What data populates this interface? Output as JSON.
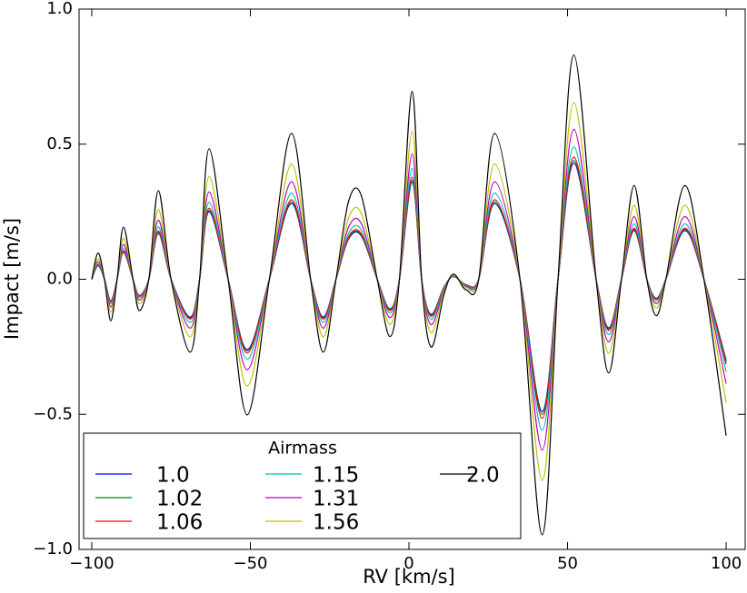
{
  "chart_data": {
    "type": "line",
    "xlabel": "RV [km/s]",
    "ylabel": "Impact [m/s]",
    "legend_title": "Airmass",
    "legend": "lower left",
    "xlim": [
      -104,
      106
    ],
    "ylim": [
      -1.0,
      1.0
    ],
    "xticks": [
      {
        "value": -100,
        "label": "−100"
      },
      {
        "value": -50,
        "label": "−50"
      },
      0,
      50,
      100
    ],
    "yticks": [
      {
        "value": -1.0,
        "label": "−1.0"
      },
      {
        "value": -0.5,
        "label": "−0.5"
      },
      {
        "value": 0.0,
        "label": "0.0"
      },
      0.5,
      {
        "value": 1.0,
        "label": "1.0"
      }
    ],
    "x": [
      -100,
      -98,
      -96,
      -94,
      -92,
      -90,
      -87,
      -85,
      -82,
      -79,
      -75,
      -69,
      -66,
      -63,
      -57,
      -51,
      -44,
      -37,
      -31,
      -27,
      -23,
      -19,
      -15,
      -10,
      -6,
      -3,
      1,
      4,
      7,
      11,
      14,
      18,
      22,
      27,
      35,
      42,
      47,
      52,
      59,
      63,
      67,
      71,
      75,
      78,
      81,
      87,
      93,
      100
    ],
    "series": [
      {
        "name": "1.0",
        "color": "#0000ff",
        "values": [
          0,
          0.05,
          0,
          -0.08,
          0,
          0.1,
          0,
          -0.06,
          0,
          0.17,
          0,
          -0.14,
          0,
          0.25,
          0,
          -0.26,
          0,
          0.28,
          0,
          -0.14,
          0,
          0.15,
          0.16,
          0,
          -0.11,
          0,
          0.36,
          0,
          -0.13,
          -0.03,
          0.01,
          -0.02,
          0,
          0.28,
          0,
          -0.49,
          0,
          0.43,
          0,
          -0.18,
          0,
          0.18,
          0,
          -0.07,
          0,
          0.18,
          0,
          -0.3
        ]
      },
      {
        "name": "1.02",
        "color": "#008000",
        "values": [
          0,
          0.051,
          0,
          -0.082,
          0,
          0.102,
          0,
          -0.061,
          0,
          0.173,
          0,
          -0.143,
          0,
          0.255,
          0,
          -0.265,
          0,
          0.286,
          0,
          -0.143,
          0,
          0.153,
          0.163,
          0,
          -0.112,
          0,
          0.367,
          0,
          -0.133,
          -0.031,
          0.01,
          -0.02,
          0,
          0.286,
          0,
          -0.5,
          0,
          0.439,
          0,
          -0.184,
          0,
          0.184,
          0,
          -0.071,
          0,
          0.184,
          0,
          -0.306
        ]
      },
      {
        "name": "1.06",
        "color": "#ff0000",
        "values": [
          0,
          0.053,
          0,
          -0.084,
          0,
          0.105,
          0,
          -0.063,
          0,
          0.179,
          0,
          -0.147,
          0,
          0.263,
          0,
          -0.273,
          0,
          0.294,
          0,
          -0.147,
          0,
          0.158,
          0.168,
          0,
          -0.116,
          0,
          0.378,
          0,
          -0.137,
          -0.032,
          0.011,
          -0.021,
          0,
          0.294,
          0,
          -0.515,
          0,
          0.452,
          0,
          -0.189,
          0,
          0.189,
          0,
          -0.074,
          0,
          0.189,
          0,
          -0.315
        ]
      },
      {
        "name": "1.15",
        "color": "#00bfbf",
        "values": [
          0,
          0.057,
          0,
          -0.091,
          0,
          0.114,
          0,
          -0.068,
          0,
          0.194,
          0,
          -0.16,
          0,
          0.285,
          0,
          -0.296,
          0,
          0.319,
          0,
          -0.16,
          0,
          0.171,
          0.182,
          0,
          -0.125,
          0,
          0.41,
          0,
          -0.148,
          -0.034,
          0.011,
          -0.023,
          0,
          0.319,
          0,
          -0.559,
          0,
          0.49,
          0,
          -0.205,
          0,
          0.205,
          0,
          -0.08,
          0,
          0.205,
          0,
          -0.342
        ]
      },
      {
        "name": "1.31",
        "color": "#bf00bf",
        "values": [
          0,
          0.065,
          0,
          -0.103,
          0,
          0.129,
          0,
          -0.077,
          0,
          0.219,
          0,
          -0.181,
          0,
          0.323,
          0,
          -0.335,
          0,
          0.361,
          0,
          -0.181,
          0,
          0.194,
          0.206,
          0,
          -0.142,
          0,
          0.464,
          0,
          -0.168,
          -0.039,
          0.013,
          -0.026,
          0,
          0.361,
          0,
          -0.632,
          0,
          0.555,
          0,
          -0.232,
          0,
          0.232,
          0,
          -0.09,
          0,
          0.232,
          0,
          -0.387
        ]
      },
      {
        "name": "1.56",
        "color": "#bfbf00",
        "values": [
          0,
          0.076,
          0,
          -0.122,
          0,
          0.152,
          0,
          -0.091,
          0,
          0.258,
          0,
          -0.213,
          0,
          0.38,
          0,
          -0.395,
          0,
          0.426,
          0,
          -0.213,
          0,
          0.228,
          0.243,
          0,
          -0.167,
          0,
          0.547,
          0,
          -0.198,
          -0.046,
          0.015,
          -0.03,
          0,
          0.426,
          0,
          -0.745,
          0,
          0.654,
          0,
          -0.274,
          0,
          0.274,
          0,
          -0.106,
          0,
          0.274,
          0,
          -0.456
        ]
      },
      {
        "name": "2.0",
        "color": "#000000",
        "values": [
          0,
          0.097,
          0,
          -0.154,
          0,
          0.193,
          0,
          -0.116,
          0,
          0.328,
          0,
          -0.27,
          0,
          0.483,
          0,
          -0.502,
          0,
          0.54,
          0,
          -0.27,
          0,
          0.29,
          0.309,
          0,
          -0.212,
          0,
          0.695,
          0,
          -0.251,
          -0.058,
          0.019,
          -0.039,
          0,
          0.54,
          0,
          -0.946,
          0,
          0.83,
          0,
          -0.347,
          0,
          0.347,
          0,
          -0.135,
          0,
          0.347,
          0,
          -0.579
        ]
      }
    ]
  }
}
